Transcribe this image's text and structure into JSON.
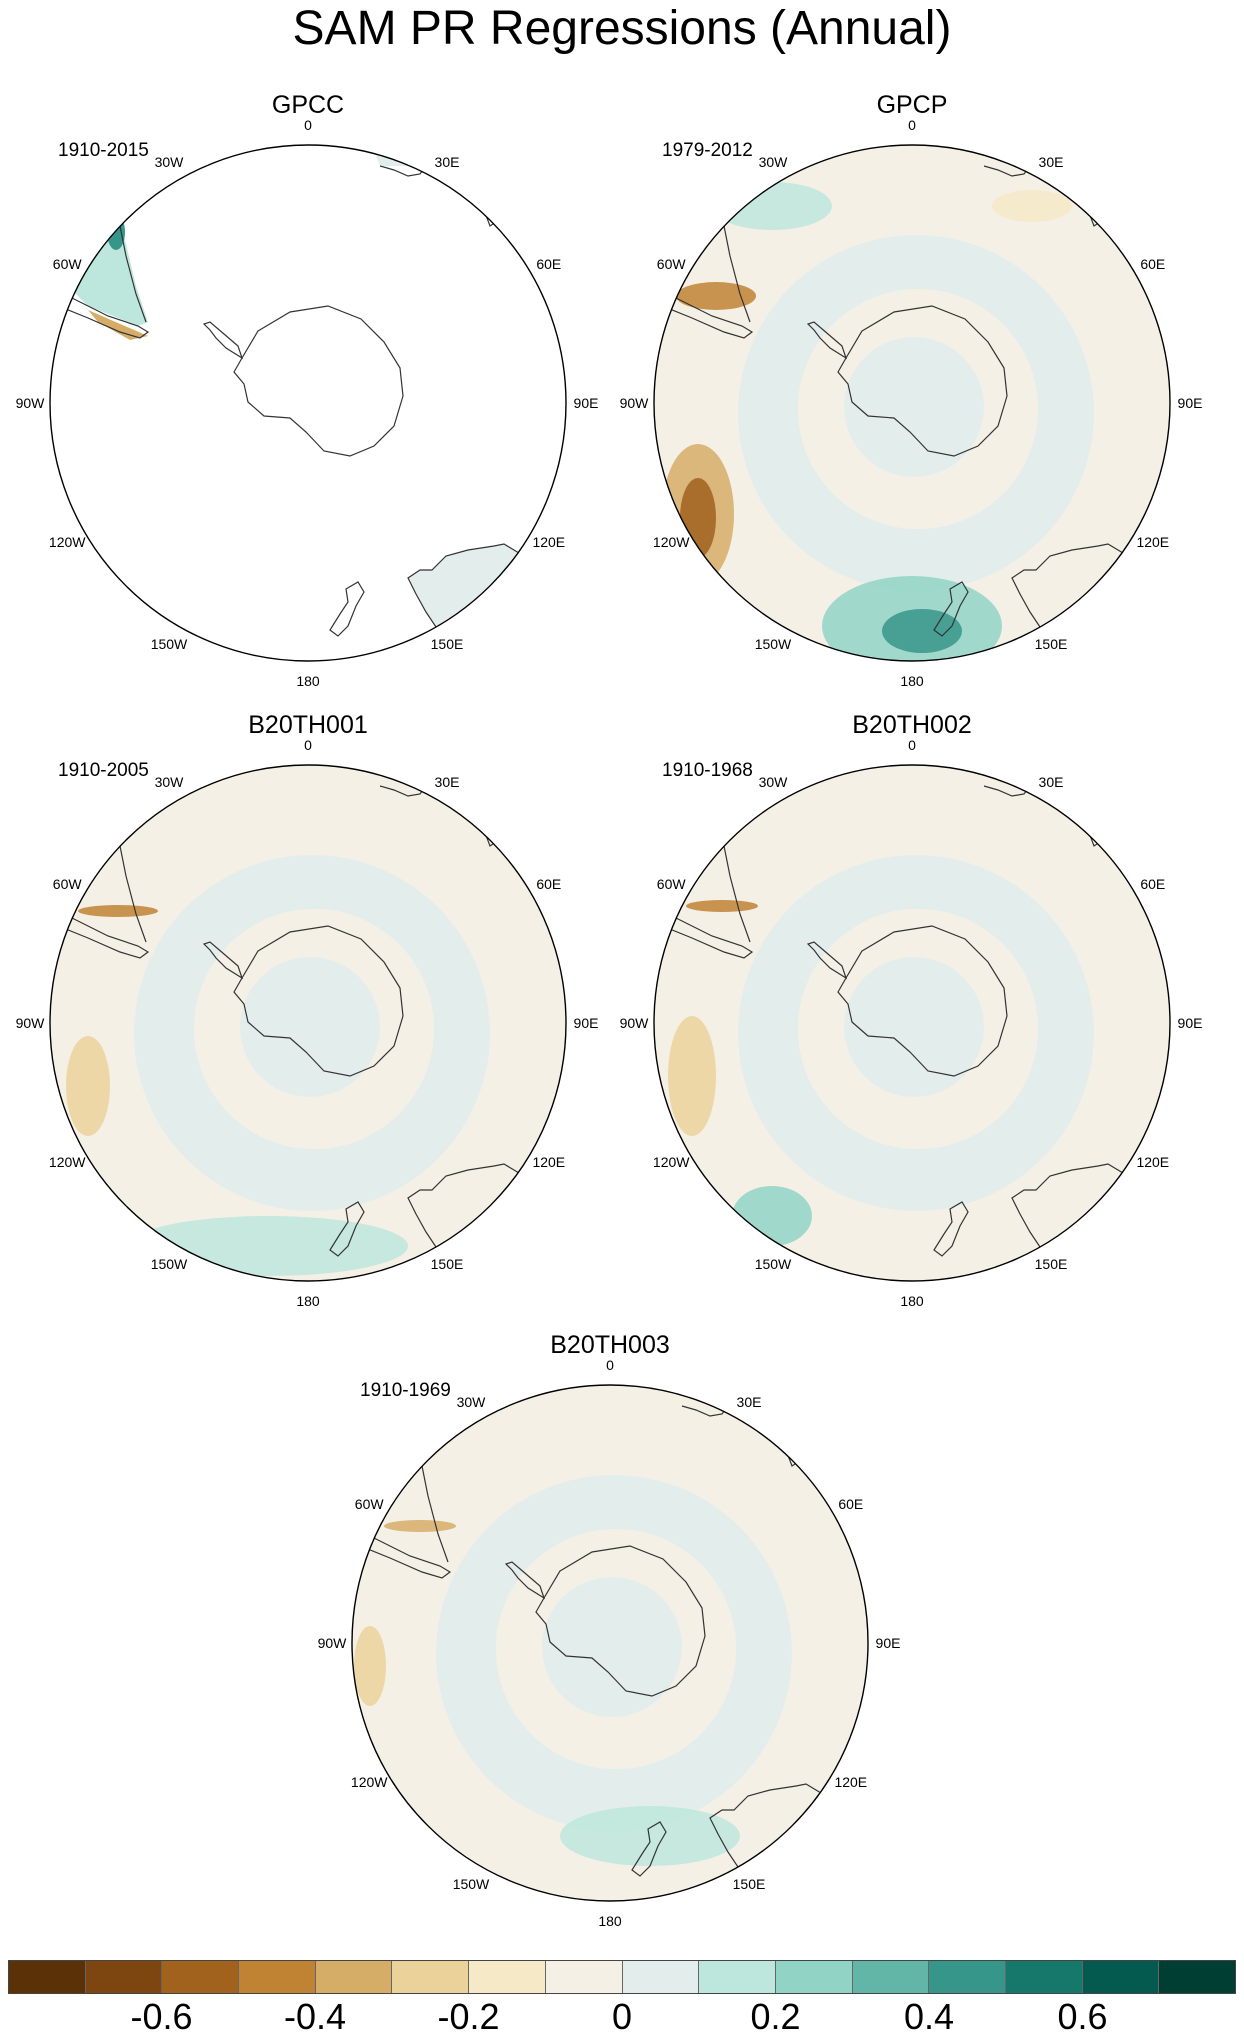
{
  "title": "SAM PR Regressions (Annual)",
  "lon_labels": [
    "0",
    "30E",
    "60E",
    "90E",
    "120E",
    "150E",
    "180",
    "150W",
    "120W",
    "90W",
    "60W",
    "30W"
  ],
  "panels": [
    {
      "id": "gpcc",
      "title": "GPCC",
      "period": "1910-2015",
      "coverage": "land"
    },
    {
      "id": "gpcp",
      "title": "GPCP",
      "period": "1979-2012",
      "coverage": "full"
    },
    {
      "id": "b20th001",
      "title": "B20TH001",
      "period": "1910-2005",
      "coverage": "full"
    },
    {
      "id": "b20th002",
      "title": "B20TH002",
      "period": "1910-1968",
      "coverage": "full"
    },
    {
      "id": "b20th003",
      "title": "B20TH003",
      "period": "1910-1969",
      "coverage": "full"
    }
  ],
  "colorbar": {
    "colors": [
      "#5b3208",
      "#7d4610",
      "#a0621d",
      "#c08233",
      "#d6ad67",
      "#ebd29a",
      "#f6e9c8",
      "#f5f0e6",
      "#e3eeec",
      "#bde6dc",
      "#91d3c5",
      "#62b6a7",
      "#37968a",
      "#16776b",
      "#055a4f",
      "#003d33"
    ],
    "labels": [
      {
        "text": "-0.6",
        "boundary": 2
      },
      {
        "text": "-0.4",
        "boundary": 4
      },
      {
        "text": "-0.2",
        "boundary": 6
      },
      {
        "text": "0",
        "boundary": 8
      },
      {
        "text": "0.2",
        "boundary": 10
      },
      {
        "text": "0.4",
        "boundary": 12
      },
      {
        "text": "0.6",
        "boundary": 14
      }
    ]
  }
}
